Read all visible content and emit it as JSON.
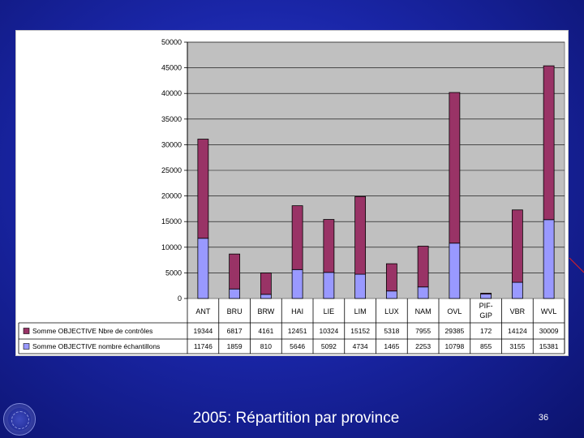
{
  "slide": {
    "caption": "2005: Répartition par province",
    "page_number": "36"
  },
  "colors": {
    "series_top": "#993366",
    "series_bottom": "#9999ff",
    "plot_bg": "#c0c0c0",
    "accent_line": "#e02020"
  },
  "icons": {
    "logo": "circular-seal-icon"
  },
  "chart_data": {
    "type": "bar",
    "stacked": true,
    "categories": [
      "ANT",
      "BRU",
      "BRW",
      "HAI",
      "LIE",
      "LIM",
      "LUX",
      "NAM",
      "OVL",
      "PIF-GIP",
      "VBR",
      "WVL"
    ],
    "category_lines": [
      [
        "ANT"
      ],
      [
        "BRU"
      ],
      [
        "BRW"
      ],
      [
        "HAI"
      ],
      [
        "LIE"
      ],
      [
        "LIM"
      ],
      [
        "LUX"
      ],
      [
        "NAM"
      ],
      [
        "OVL"
      ],
      [
        "PIF-",
        "GIP"
      ],
      [
        "VBR"
      ],
      [
        "WVL"
      ]
    ],
    "series": [
      {
        "name": "Somme OBJECTIVE nombre échantillons",
        "values": [
          11746,
          1859,
          810,
          5646,
          5092,
          4734,
          1465,
          2253,
          10798,
          855,
          3155,
          15381
        ],
        "color": "#9999ff"
      },
      {
        "name": "Somme OBJECTIVE Nbre de contrôles",
        "values": [
          19344,
          6817,
          4161,
          12451,
          10324,
          15152,
          5318,
          7955,
          29385,
          172,
          14124,
          30009
        ],
        "color": "#993366"
      }
    ],
    "table_rows": [
      {
        "label": "Somme OBJECTIVE Nbre de contrôles",
        "series_index": 1
      },
      {
        "label": "Somme OBJECTIVE nombre échantillons",
        "series_index": 0
      }
    ],
    "ylim": [
      0,
      50000
    ],
    "yticks": [
      "0",
      "5000",
      "10000",
      "15000",
      "20000",
      "25000",
      "30000",
      "35000",
      "40000",
      "45000",
      "50000"
    ],
    "grid": true,
    "legend": "data-table"
  }
}
